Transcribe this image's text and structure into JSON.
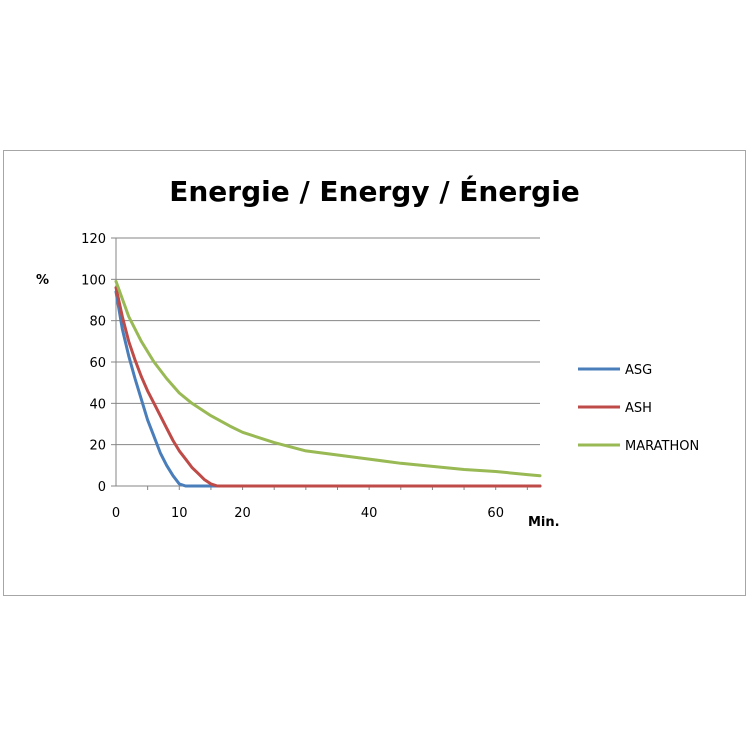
{
  "chart_data": {
    "type": "line",
    "title": "Energie / Energy / Énergie",
    "ylabel": "%",
    "xlabel": "Min.",
    "xlim": [
      0,
      67
    ],
    "ylim": [
      0,
      120
    ],
    "x_ticks": [
      0,
      10,
      20,
      40,
      60
    ],
    "y_ticks": [
      0,
      20,
      40,
      60,
      80,
      100,
      120
    ],
    "grid": "horizontal",
    "legend_position": "right",
    "series": [
      {
        "name": "ASG",
        "color": "#4a7ebb",
        "x": [
          0,
          1,
          2,
          3,
          4,
          5,
          6,
          7,
          8,
          9,
          10,
          11,
          67
        ],
        "y": [
          94,
          76,
          63,
          52,
          42,
          32,
          24,
          16,
          10,
          5,
          1,
          0,
          0
        ]
      },
      {
        "name": "ASH",
        "color": "#be4b48",
        "x": [
          0,
          1,
          2,
          3,
          4,
          5,
          6,
          7,
          8,
          9,
          10,
          11,
          12,
          13,
          14,
          15,
          16,
          67
        ],
        "y": [
          96,
          82,
          70,
          61,
          53,
          46,
          40,
          34,
          28,
          22,
          17,
          13,
          9,
          6,
          3,
          1,
          0,
          0
        ]
      },
      {
        "name": "MARATHON",
        "color": "#98b954",
        "x": [
          0,
          2,
          4,
          6,
          8,
          10,
          12,
          15,
          18,
          20,
          25,
          30,
          35,
          40,
          45,
          50,
          55,
          60,
          65,
          67
        ],
        "y": [
          99,
          82,
          70,
          60,
          52,
          45,
          40,
          34,
          29,
          26,
          21,
          17,
          15,
          13,
          11,
          9.5,
          8,
          7,
          5.5,
          5
        ]
      }
    ]
  }
}
